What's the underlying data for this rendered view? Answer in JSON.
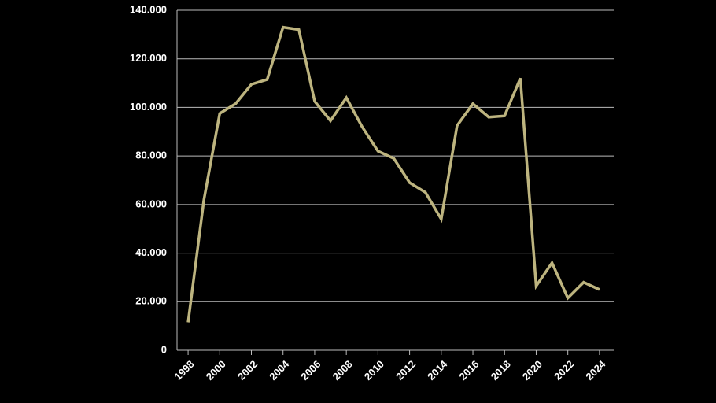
{
  "chart_data": {
    "type": "line",
    "x": [
      1998,
      1999,
      2000,
      2001,
      2002,
      2003,
      2004,
      2005,
      2006,
      2007,
      2008,
      2009,
      2010,
      2011,
      2012,
      2013,
      2014,
      2015,
      2016,
      2017,
      2018,
      2019,
      2020,
      2021,
      2022,
      2023,
      2024
    ],
    "values": [
      11500,
      62000,
      97500,
      101500,
      109500,
      111500,
      133000,
      132000,
      102500,
      94500,
      104000,
      92000,
      82000,
      79000,
      69000,
      65000,
      54000,
      92500,
      101500,
      96000,
      96500,
      112000,
      26500,
      36000,
      21500,
      28000,
      25000
    ],
    "color": "#bdb47f",
    "xlim": [
      1997.3,
      2024.9
    ],
    "xticks": [
      1998,
      2000,
      2002,
      2004,
      2006,
      2008,
      2010,
      2012,
      2014,
      2016,
      2018,
      2020,
      2022,
      2024
    ],
    "ylim": [
      0,
      140000
    ],
    "yticks": [
      0,
      {
        "value": 20000,
        "label": "20.000"
      },
      {
        "value": 40000,
        "label": "40.000"
      },
      {
        "value": 60000,
        "label": "60.000"
      },
      {
        "value": 80000,
        "label": "80.000"
      },
      {
        "value": 100000,
        "label": "100.000"
      },
      {
        "value": 120000,
        "label": "120.000"
      },
      {
        "value": 140000,
        "label": "140.000"
      }
    ],
    "grid": true
  }
}
